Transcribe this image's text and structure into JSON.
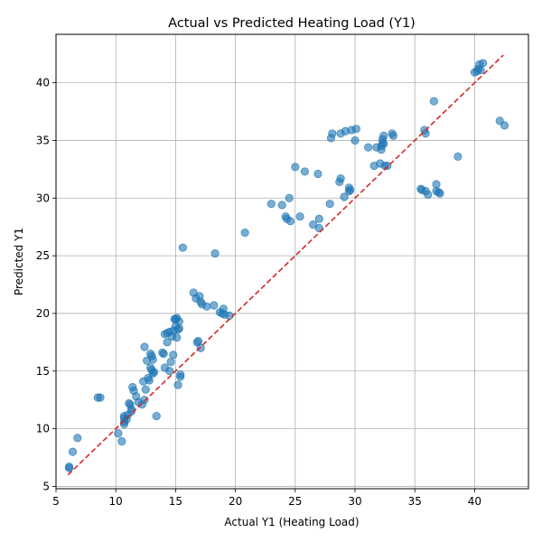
{
  "chart_data": {
    "type": "scatter",
    "title": "Actual vs Predicted Heating Load (Y1)",
    "xlabel": "Actual Y1 (Heating Load)",
    "ylabel": "Predicted Y1",
    "xlim": [
      5.0,
      44.5
    ],
    "ylim": [
      4.8,
      44.2
    ],
    "xticks": [
      5,
      10,
      15,
      20,
      25,
      30,
      35,
      40
    ],
    "yticks": [
      5,
      10,
      15,
      20,
      25,
      30,
      35,
      40
    ],
    "grid": true,
    "point_color": "#1f77b4",
    "reference_line": {
      "from": [
        6.0,
        6.0
      ],
      "to": [
        42.4,
        42.4
      ],
      "color": "#d62728",
      "style": "dashed"
    },
    "points": [
      [
        6.1,
        6.6
      ],
      [
        6.1,
        6.7
      ],
      [
        6.4,
        8.0
      ],
      [
        6.8,
        9.2
      ],
      [
        8.5,
        12.7
      ],
      [
        8.7,
        12.7
      ],
      [
        10.2,
        9.6
      ],
      [
        10.5,
        8.9
      ],
      [
        10.7,
        10.4
      ],
      [
        10.7,
        10.6
      ],
      [
        10.7,
        10.9
      ],
      [
        10.7,
        11.1
      ],
      [
        10.9,
        10.8
      ],
      [
        11.0,
        11.2
      ],
      [
        11.1,
        12.2
      ],
      [
        11.2,
        12.1
      ],
      [
        11.3,
        11.7
      ],
      [
        11.3,
        11.5
      ],
      [
        11.4,
        13.6
      ],
      [
        11.5,
        13.3
      ],
      [
        11.7,
        12.8
      ],
      [
        11.9,
        12.3
      ],
      [
        12.2,
        12.1
      ],
      [
        12.3,
        14.1
      ],
      [
        12.4,
        12.5
      ],
      [
        12.4,
        17.1
      ],
      [
        12.5,
        13.4
      ],
      [
        12.6,
        15.9
      ],
      [
        12.7,
        14.4
      ],
      [
        12.8,
        14.2
      ],
      [
        12.9,
        16.5
      ],
      [
        12.9,
        15.3
      ],
      [
        13.0,
        16.3
      ],
      [
        13.0,
        15.1
      ],
      [
        13.1,
        16.0
      ],
      [
        13.1,
        14.8
      ],
      [
        13.2,
        14.9
      ],
      [
        13.4,
        11.1
      ],
      [
        13.9,
        16.6
      ],
      [
        14.0,
        16.5
      ],
      [
        14.1,
        15.3
      ],
      [
        14.1,
        18.2
      ],
      [
        14.3,
        18.3
      ],
      [
        14.3,
        17.5
      ],
      [
        14.5,
        18.4
      ],
      [
        14.5,
        15.0
      ],
      [
        14.6,
        15.8
      ],
      [
        14.7,
        18.0
      ],
      [
        14.8,
        16.4
      ],
      [
        14.8,
        18.5
      ],
      [
        14.9,
        19.5
      ],
      [
        15.0,
        19.5
      ],
      [
        15.0,
        18.9
      ],
      [
        15.1,
        17.9
      ],
      [
        15.1,
        19.6
      ],
      [
        15.2,
        13.8
      ],
      [
        15.2,
        18.6
      ],
      [
        15.3,
        19.3
      ],
      [
        15.3,
        18.7
      ],
      [
        15.4,
        14.5
      ],
      [
        15.4,
        14.7
      ],
      [
        15.6,
        25.7
      ],
      [
        16.5,
        21.8
      ],
      [
        16.7,
        21.3
      ],
      [
        16.8,
        17.5
      ],
      [
        16.9,
        17.6
      ],
      [
        17.0,
        21.5
      ],
      [
        17.1,
        17.0
      ],
      [
        17.1,
        21.0
      ],
      [
        17.2,
        20.8
      ],
      [
        17.6,
        20.6
      ],
      [
        18.2,
        20.7
      ],
      [
        18.3,
        25.2
      ],
      [
        18.7,
        20.1
      ],
      [
        18.9,
        20.0
      ],
      [
        19.0,
        20.4
      ],
      [
        19.1,
        19.9
      ],
      [
        19.5,
        19.8
      ],
      [
        20.8,
        27.0
      ],
      [
        23.0,
        29.5
      ],
      [
        23.9,
        29.4
      ],
      [
        24.2,
        28.4
      ],
      [
        24.3,
        28.2
      ],
      [
        24.5,
        30.0
      ],
      [
        24.6,
        28.0
      ],
      [
        25.0,
        32.7
      ],
      [
        25.4,
        28.4
      ],
      [
        25.8,
        32.3
      ],
      [
        26.5,
        27.7
      ],
      [
        26.9,
        32.1
      ],
      [
        27.0,
        28.2
      ],
      [
        27.0,
        27.4
      ],
      [
        27.9,
        29.5
      ],
      [
        28.0,
        35.2
      ],
      [
        28.1,
        35.6
      ],
      [
        28.7,
        31.4
      ],
      [
        28.8,
        31.7
      ],
      [
        28.8,
        35.6
      ],
      [
        29.1,
        30.1
      ],
      [
        29.2,
        35.8
      ],
      [
        29.5,
        30.9
      ],
      [
        29.5,
        30.6
      ],
      [
        29.6,
        30.7
      ],
      [
        29.7,
        35.9
      ],
      [
        30.0,
        35.0
      ],
      [
        30.1,
        36.0
      ],
      [
        31.1,
        34.4
      ],
      [
        31.6,
        32.8
      ],
      [
        31.8,
        34.4
      ],
      [
        32.1,
        33.0
      ],
      [
        32.2,
        34.5
      ],
      [
        32.2,
        34.2
      ],
      [
        32.3,
        34.8
      ],
      [
        32.3,
        35.1
      ],
      [
        32.4,
        35.4
      ],
      [
        32.4,
        34.7
      ],
      [
        32.5,
        32.8
      ],
      [
        32.7,
        32.8
      ],
      [
        33.1,
        35.6
      ],
      [
        33.2,
        35.4
      ],
      [
        35.5,
        30.8
      ],
      [
        35.6,
        30.7
      ],
      [
        35.8,
        35.9
      ],
      [
        35.9,
        35.6
      ],
      [
        35.9,
        30.6
      ],
      [
        36.1,
        30.3
      ],
      [
        36.6,
        38.4
      ],
      [
        36.8,
        31.2
      ],
      [
        36.8,
        30.6
      ],
      [
        37.0,
        30.5
      ],
      [
        37.1,
        30.4
      ],
      [
        38.6,
        33.6
      ],
      [
        40.0,
        40.9
      ],
      [
        40.2,
        41.0
      ],
      [
        40.3,
        41.2
      ],
      [
        40.4,
        41.6
      ],
      [
        40.5,
        41.1
      ],
      [
        40.7,
        41.7
      ],
      [
        42.1,
        36.7
      ],
      [
        42.5,
        36.3
      ]
    ]
  }
}
